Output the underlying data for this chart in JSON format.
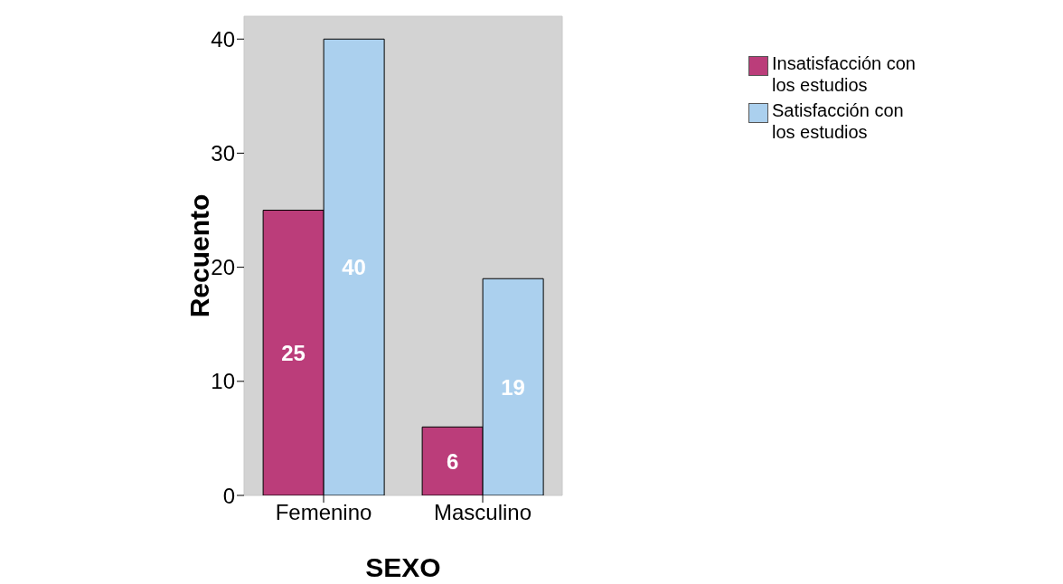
{
  "chart_data": {
    "type": "bar",
    "xlabel": "SEXO",
    "ylabel": "Recuento",
    "categories": [
      "Femenino",
      "Masculino"
    ],
    "series": [
      {
        "name": "Insatisfacción con los estudios",
        "color": "#bb3d7a",
        "values": [
          25,
          6
        ]
      },
      {
        "name": "Satisfacción con los estudios",
        "color": "#abd0ee",
        "values": [
          40,
          19
        ]
      }
    ],
    "ylim": [
      0,
      42
    ],
    "yticks": [
      0,
      10,
      20,
      30,
      40
    ],
    "grid": false,
    "legend": "top right",
    "data_labels": true
  }
}
